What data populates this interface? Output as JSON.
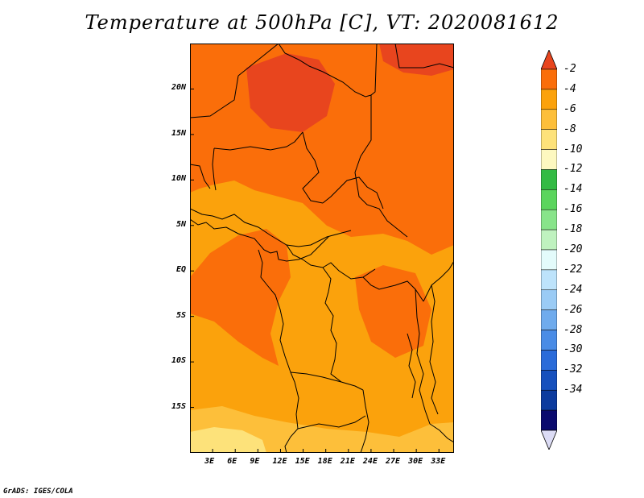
{
  "title": "Temperature at 500hPa [C], VT: 2020081612",
  "credit": "GrADS: IGES/COLA",
  "map": {
    "lon_range": [
      0,
      35
    ],
    "lat_range": [
      -20,
      25
    ],
    "lon_ticks": [
      {
        "value": 3,
        "label": "3E"
      },
      {
        "value": 6,
        "label": "6E"
      },
      {
        "value": 9,
        "label": "9E"
      },
      {
        "value": 12,
        "label": "12E"
      },
      {
        "value": 15,
        "label": "15E"
      },
      {
        "value": 18,
        "label": "18E"
      },
      {
        "value": 21,
        "label": "21E"
      },
      {
        "value": 24,
        "label": "24E"
      },
      {
        "value": 27,
        "label": "27E"
      },
      {
        "value": 30,
        "label": "30E"
      },
      {
        "value": 33,
        "label": "33E"
      }
    ],
    "lat_ticks": [
      {
        "value": 20,
        "label": "20N"
      },
      {
        "value": 15,
        "label": "15N"
      },
      {
        "value": 10,
        "label": "10N"
      },
      {
        "value": 5,
        "label": "5N"
      },
      {
        "value": 0,
        "label": "EQ"
      },
      {
        "value": -5,
        "label": "5S"
      },
      {
        "value": -10,
        "label": "10S"
      },
      {
        "value": -15,
        "label": "15S"
      }
    ]
  },
  "colorbar": {
    "levels": [
      "-2",
      "-4",
      "-6",
      "-8",
      "-10",
      "-12",
      "-14",
      "-16",
      "-18",
      "-20",
      "-22",
      "-24",
      "-26",
      "-28",
      "-30",
      "-32",
      "-34"
    ],
    "colors": [
      "#e8451e",
      "#fa6e0a",
      "#fba20c",
      "#fdbf3a",
      "#fde27a",
      "#fdf8c0",
      "#33bb44",
      "#5bd55d",
      "#88e48a",
      "#bff2bf",
      "#e3fbfb",
      "#bde3fb",
      "#9acbf5",
      "#6fabed",
      "#4a8ce6",
      "#2a6bd9",
      "#1650bd",
      "#0c3b9e",
      "#0a0a6e",
      "#dcdcf5"
    ]
  },
  "field_colors": {
    "warmest": "#e8451e",
    "warm": "#fa6e0a",
    "mid": "#fba20c",
    "cool": "#fdbf3a",
    "coolest": "#fde27a"
  }
}
